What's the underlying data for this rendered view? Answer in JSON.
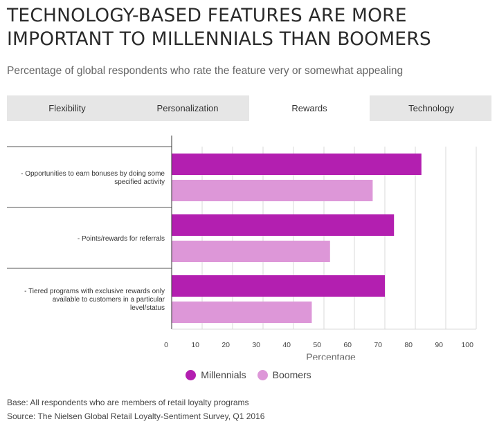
{
  "title": "TECHNOLOGY-BASED FEATURES ARE MORE IMPORTANT TO MILLENNIALS THAN BOOMERS",
  "subtitle": "Percentage of global respondents who rate the feature very or somewhat appealing",
  "tabs": [
    {
      "label": "Flexibility",
      "active": false
    },
    {
      "label": "Personalization",
      "active": false
    },
    {
      "label": "Rewards",
      "active": true
    },
    {
      "label": "Technology",
      "active": false
    }
  ],
  "footnotes": {
    "base": "Base: All respondents who are members of retail loyalty programs",
    "source": "Source: The Nielsen Global Retail Loyalty-Sentiment Survey, Q1 2016"
  },
  "chart_data": {
    "type": "bar",
    "orientation": "horizontal",
    "title": "",
    "xlabel": "Percentage",
    "ylabel": "",
    "xlim": [
      0,
      100
    ],
    "ticks": [
      0,
      10,
      20,
      30,
      40,
      50,
      60,
      70,
      80,
      90,
      100
    ],
    "grid": true,
    "legend": "bottom-center",
    "categories": [
      [
        "- Opportunities to earn bonuses by doing some",
        "specified activity"
      ],
      [
        "- Points/rewards for referrals"
      ],
      [
        "- Tiered programs with exclusive rewards only",
        "available to customers in a particular",
        "level/status"
      ]
    ],
    "series": [
      {
        "name": "Millennials",
        "color": "#b31fb0",
        "values": [
          82,
          73,
          70
        ]
      },
      {
        "name": "Boomers",
        "color": "#dd97d8",
        "values": [
          66,
          52,
          46
        ]
      }
    ]
  }
}
